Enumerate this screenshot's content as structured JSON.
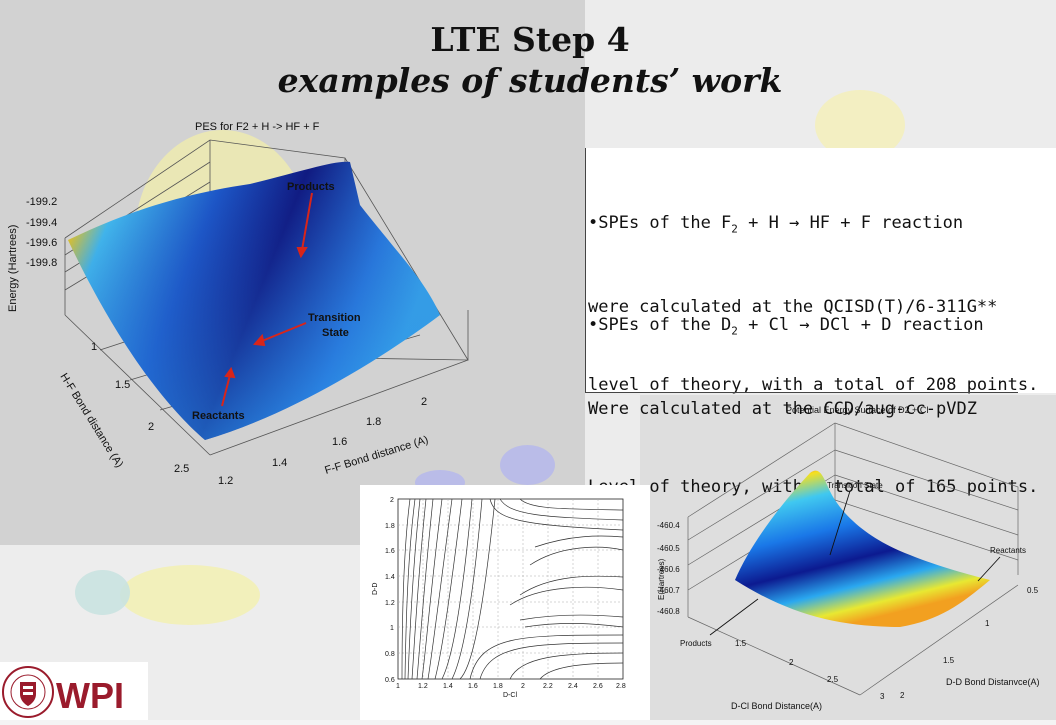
{
  "slide": {
    "title": "LTE Step 4",
    "subtitle": "examples of students’ work"
  },
  "text_panel": {
    "para1": {
      "line1_pre": "•SPEs of the F",
      "line1_sub": "2",
      "line1_post": " + H → HF + F reaction",
      "line2": "were calculated at the QCISD(T)/6-311G**",
      "line3": "level of theory, with a total of 208 points."
    },
    "para2": {
      "line1_pre": "•SPEs of the D",
      "line1_sub": "2",
      "line1_post": " + Cl → DCl + D reaction",
      "line2": "Were calculated at the CCD/aug-cc-pVDZ",
      "line3": "Level of theory, with a total of 165 points."
    }
  },
  "plot1": {
    "title": "PES for F2 + H -> HF + F",
    "zlabel": "Energy (Hartrees)",
    "z_ticks": [
      "-199.2",
      "-199.4",
      "-199.6",
      "-199.8"
    ],
    "ylabel": "H-F Bond distance (A)",
    "y_ticks": [
      "1",
      "1.5",
      "2",
      "2.5"
    ],
    "xlabel": "F-F Bond distance (A)",
    "x_ticks": [
      "1.2",
      "1.4",
      "1.6",
      "1.8",
      "2"
    ],
    "annotations": {
      "products": "Products",
      "ts_line1": "Transition",
      "ts_line2": "State",
      "reactants": "Reactants"
    }
  },
  "plot2": {
    "xlabel": "D-Cl",
    "ylabel": "D-D",
    "x_ticks": [
      "1",
      "1.2",
      "1.4",
      "1.6",
      "1.8",
      "2",
      "2.2",
      "2.4",
      "2.6",
      "2.8"
    ],
    "y_ticks": [
      "2",
      "1.8",
      "1.6",
      "1.4",
      "1.2",
      "1",
      "0.8",
      "0.6"
    ]
  },
  "plot3": {
    "title": "Potential Energy Surface of D2 + Cl",
    "zlabel": "E(Hartrees)",
    "z_ticks": [
      "-460.4",
      "-460.5",
      "-460.6",
      "-460.7",
      "-460.8"
    ],
    "xlabel": "D-Cl Bond Distance(A)",
    "x_ticks": [
      "1.5",
      "2",
      "2.5",
      "3"
    ],
    "ylabel": "D-D Bond Distanvce(A)",
    "y_ticks": [
      "0.5",
      "1",
      "1.5",
      "2"
    ],
    "annotations": {
      "ts": "Transition State",
      "reactants": "Reactants",
      "products": "Products"
    }
  },
  "logo": {
    "text": "WPI",
    "seal_text": "WORCESTER POLYTECHNIC INSTITUTE 1865"
  },
  "colors": {
    "surface_low": "#1a2aa8",
    "surface_mid": "#2f9bf0",
    "surface_high": "#e01a10",
    "arrow": "#d8251a",
    "logo_maroon": "#9a1b2c"
  }
}
